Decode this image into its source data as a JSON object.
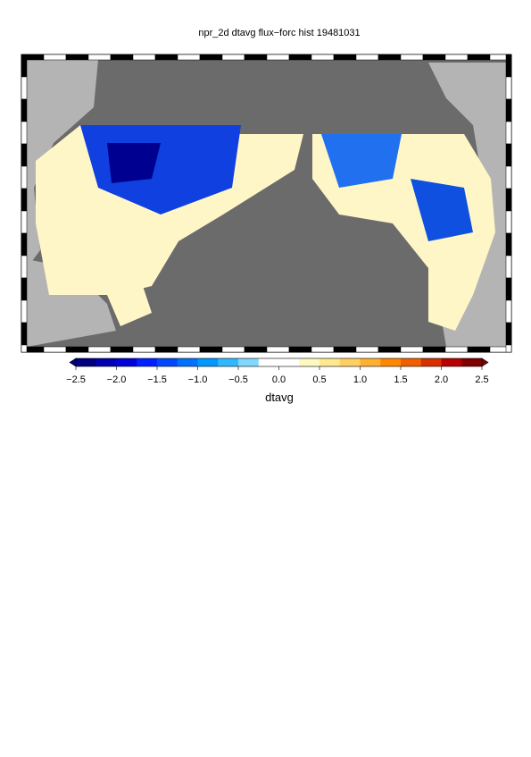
{
  "title": "npr_2d dtavg flux−forc hist 19481031",
  "colorbar": {
    "label": "dtavg",
    "lim": [
      -2.5,
      2.5
    ],
    "ticks": [
      {
        "value": -2.5,
        "label": "−2.5"
      },
      {
        "value": -2,
        "label": "−2.0"
      },
      {
        "value": -1.5,
        "label": "−1.5"
      },
      {
        "value": -1,
        "label": "−1.0"
      },
      {
        "value": -0.5,
        "label": "−0.5"
      },
      {
        "value": 0,
        "label": "0.0"
      },
      0.5,
      {
        "value": 1,
        "label": "1.0"
      },
      1.5,
      {
        "value": 2,
        "label": "2.0"
      },
      2.5
    ],
    "colors": [
      "#000080",
      "#0000b0",
      "#0000d8",
      "#0020ff",
      "#0048ff",
      "#0070ff",
      "#0098ff",
      "#30b8ff",
      "#80d8ff",
      "#ffffff",
      "#ffffff",
      "#fff8c0",
      "#ffe890",
      "#ffd060",
      "#ffb030",
      "#ff8800",
      "#f06000",
      "#d83000",
      "#b80000",
      "#800000"
    ]
  }
}
